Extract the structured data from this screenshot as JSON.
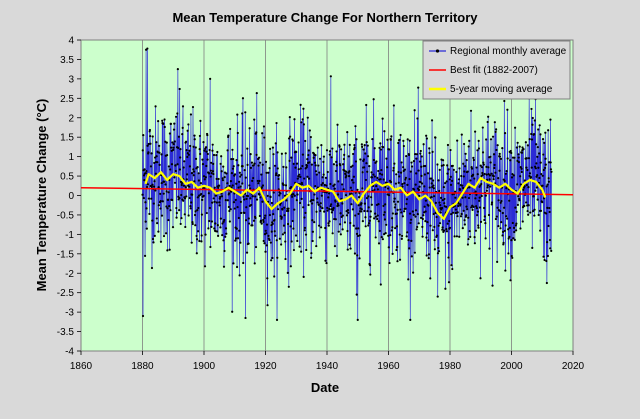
{
  "chart_data": {
    "type": "line",
    "title": "Mean Temperature Change For Northern Territory",
    "xlabel": "Date",
    "ylabel": "Mean  Temperature  Change  (°C)",
    "xlim": [
      1860,
      2020
    ],
    "ylim": [
      -4,
      4
    ],
    "x_ticks": [
      1860,
      1880,
      1900,
      1920,
      1940,
      1960,
      1980,
      2000,
      2020
    ],
    "y_ticks": [
      -4,
      -3.5,
      -3,
      -2.5,
      -2,
      -1.5,
      -1,
      -0.5,
      0,
      0.5,
      1,
      1.5,
      2,
      2.5,
      3,
      3.5,
      4
    ],
    "grid": "vertical",
    "legend_position": "top-right",
    "series": [
      {
        "name": "Regional monthly average",
        "color": "#2b2bd6",
        "marker_color": "#000000",
        "x_range": [
          1880,
          2013
        ],
        "approx_std": 0.9,
        "notable_points": [
          {
            "x": 1880.2,
            "y": -3.1
          },
          {
            "x": 1881.2,
            "y": 3.75
          },
          {
            "x": 1881.6,
            "y": 3.78
          },
          {
            "x": 1891.5,
            "y": 3.25
          },
          {
            "x": 1902.0,
            "y": 3.0
          },
          {
            "x": 1913.5,
            "y": -3.15
          },
          {
            "x": 1950.0,
            "y": -3.2
          },
          {
            "x": 1976.0,
            "y": -2.6
          },
          {
            "x": 2011.5,
            "y": -2.25
          }
        ]
      },
      {
        "name": "Best fit (1882-2007)",
        "color": "#ff0000",
        "x": [
          1860,
          2020
        ],
        "y": [
          0.2,
          0.02
        ]
      },
      {
        "name": "5-year moving average",
        "color": "#ffff00",
        "x": [
          1881,
          1882,
          1884,
          1886,
          1888,
          1890,
          1892,
          1894,
          1896,
          1898,
          1900,
          1902,
          1904,
          1906,
          1908,
          1910,
          1912,
          1914,
          1916,
          1918,
          1920,
          1922,
          1924,
          1926,
          1928,
          1930,
          1932,
          1934,
          1936,
          1938,
          1940,
          1942,
          1944,
          1946,
          1948,
          1950,
          1952,
          1954,
          1956,
          1958,
          1960,
          1962,
          1964,
          1966,
          1968,
          1970,
          1972,
          1974,
          1976,
          1978,
          1980,
          1982,
          1984,
          1986,
          1988,
          1990,
          1992,
          1994,
          1996,
          1998,
          2000,
          2002,
          2004,
          2006,
          2008,
          2010,
          2011
        ],
        "y": [
          0.3,
          0.55,
          0.45,
          0.6,
          0.4,
          0.55,
          0.5,
          0.3,
          0.35,
          0.2,
          0.25,
          0.2,
          0.05,
          0.1,
          0.2,
          0.1,
          0.0,
          0.15,
          0.05,
          0.2,
          -0.15,
          -0.35,
          -0.2,
          -0.1,
          0.05,
          0.3,
          0.2,
          0.25,
          0.1,
          0.2,
          0.15,
          0.1,
          -0.15,
          -0.1,
          0.0,
          -0.2,
          0.05,
          0.25,
          0.35,
          0.25,
          0.3,
          0.15,
          0.2,
          0.0,
          0.1,
          -0.1,
          0.0,
          -0.15,
          -0.45,
          -0.6,
          -0.3,
          -0.2,
          0.05,
          0.3,
          0.2,
          0.45,
          0.35,
          0.3,
          0.2,
          0.3,
          0.15,
          0.05,
          0.3,
          0.4,
          0.35,
          0.15,
          -0.05
        ]
      }
    ]
  }
}
